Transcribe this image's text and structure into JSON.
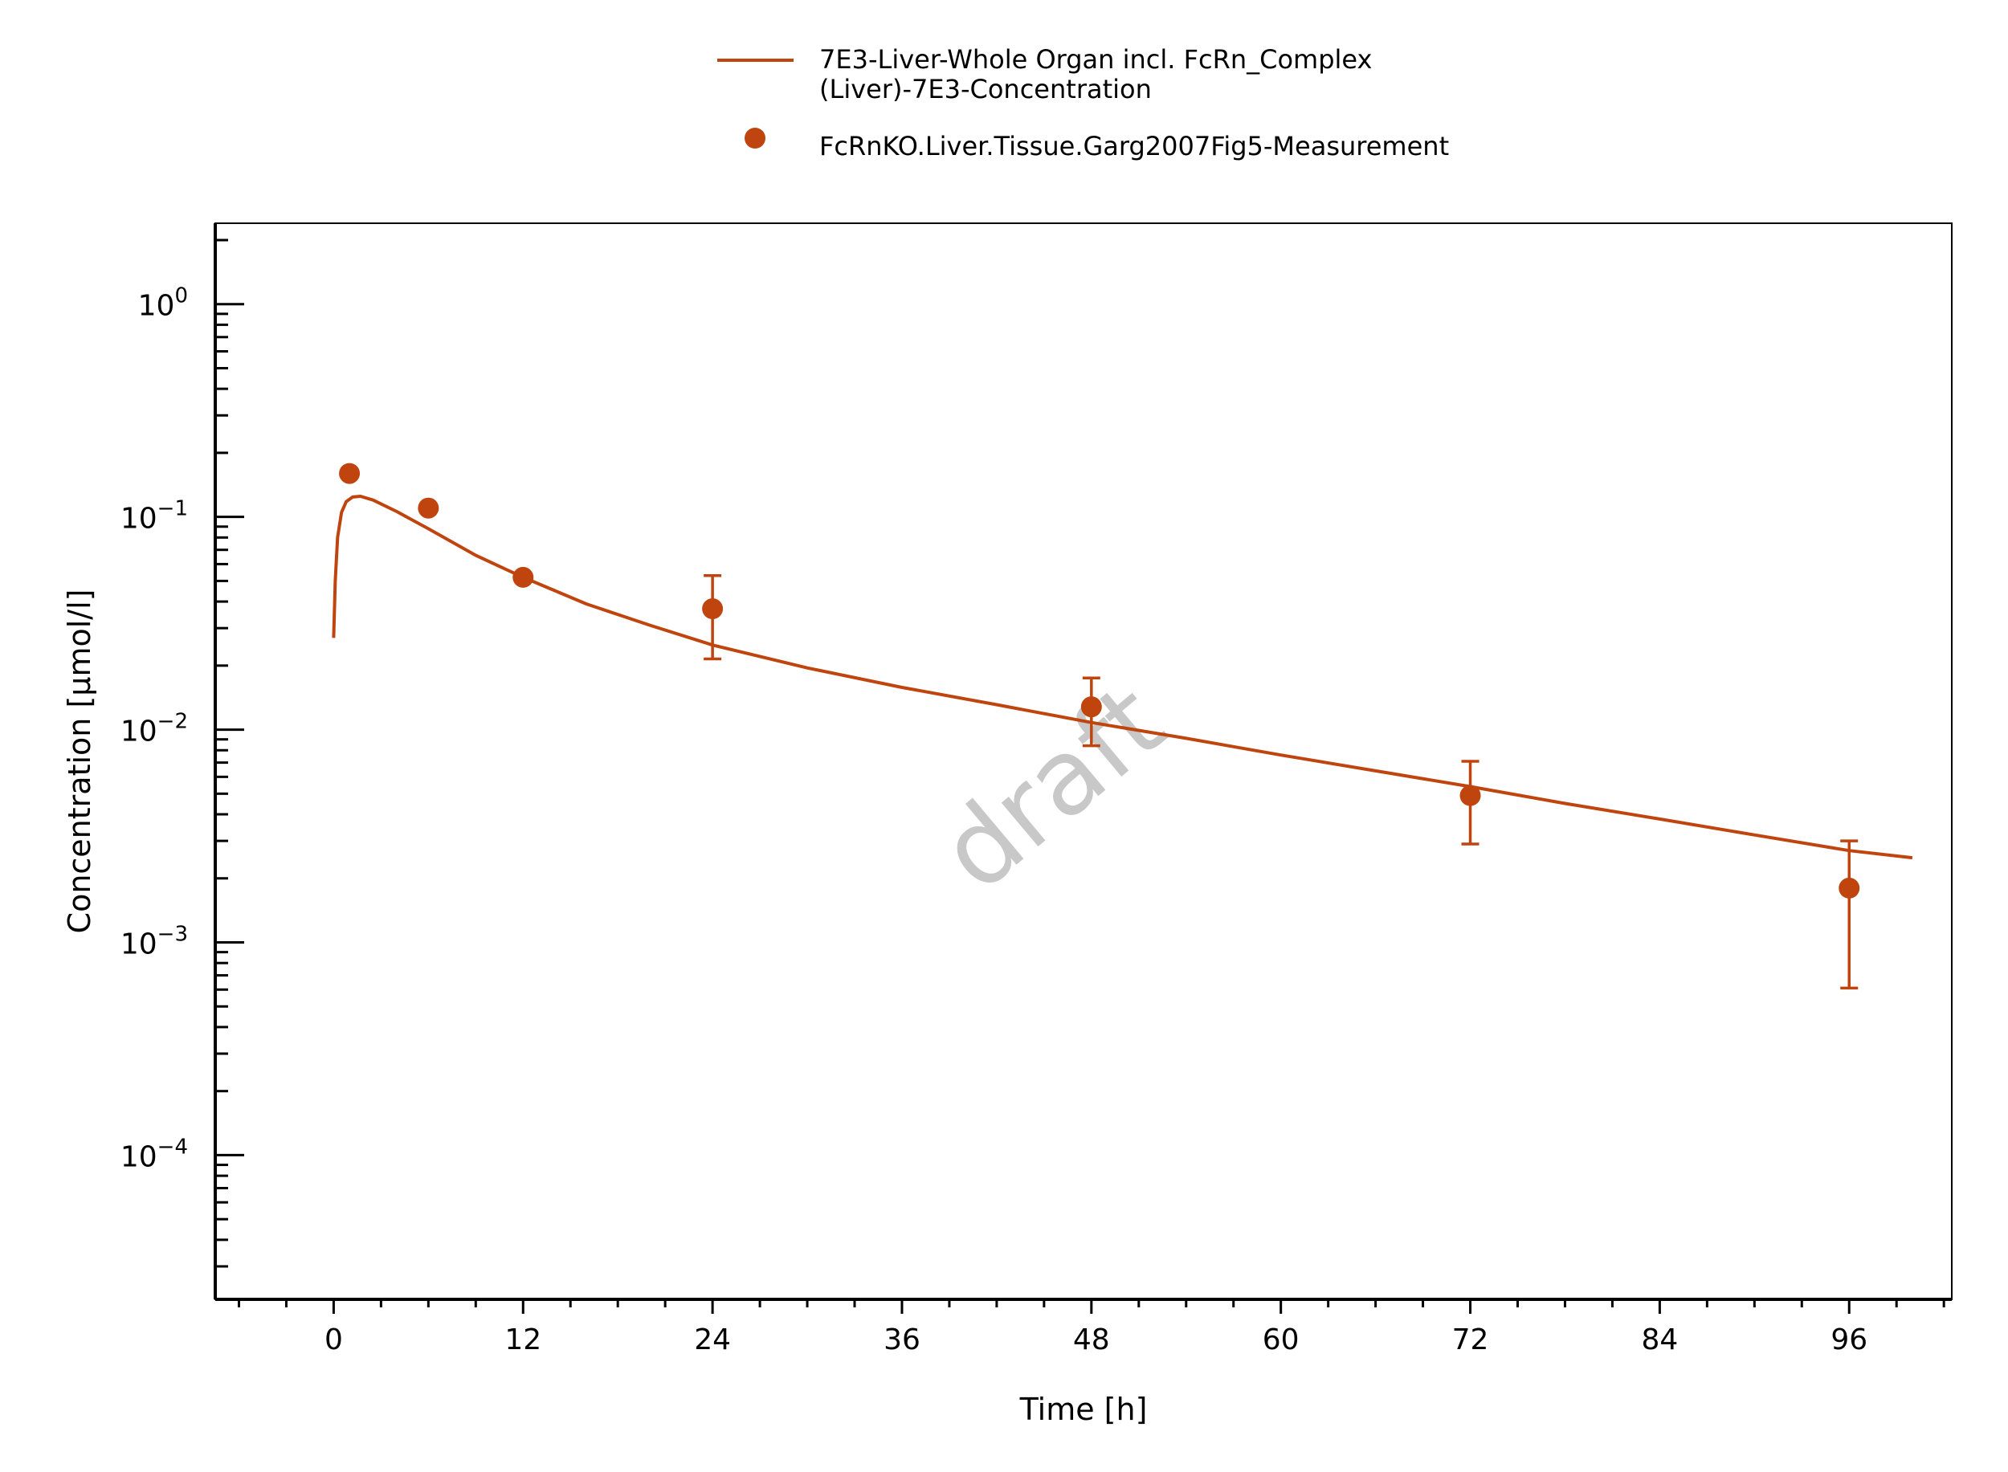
{
  "chart_data": {
    "type": "line",
    "xlabel": "Time [h]",
    "ylabel": "Concentration [µmol/l]",
    "xlim": [
      -7.5,
      102.5
    ],
    "ylim": [
      2.1e-05,
      2.4
    ],
    "yscale": "log",
    "x_ticks": [
      0,
      12,
      24,
      36,
      48,
      60,
      72,
      84,
      96
    ],
    "x_tick_labels": [
      "0",
      "12",
      "24",
      "36",
      "48",
      "60",
      "72",
      "84",
      "96"
    ],
    "y_ticks": [
      {
        "value": 1,
        "base": "10",
        "exp": "0"
      },
      {
        "value": 0.1,
        "base": "10",
        "exp": "−1"
      },
      {
        "value": 0.01,
        "base": "10",
        "exp": "−2"
      },
      {
        "value": 0.001,
        "base": "10",
        "exp": "−3"
      },
      {
        "value": 0.0001,
        "base": "10",
        "exp": "−4"
      }
    ],
    "grid": false,
    "legend_position": "top-center",
    "watermark": "draft",
    "series": [
      {
        "name": "7E3-Liver-Whole Organ incl. FcRn_Complex (Liver)-7E3-Concentration",
        "legend_lines": [
          "7E3-Liver-Whole Organ incl. FcRn_Complex",
          "(Liver)-7E3-Concentration"
        ],
        "kind": "line",
        "color": "#C0440E",
        "x": [
          0,
          0.1,
          0.25,
          0.5,
          0.8,
          1.2,
          1.7,
          2.5,
          4,
          6,
          9,
          12,
          16,
          20,
          24,
          30,
          36,
          42,
          48,
          54,
          60,
          66,
          72,
          78,
          84,
          90,
          96,
          100
        ],
        "y": [
          0.027,
          0.05,
          0.08,
          0.105,
          0.118,
          0.124,
          0.125,
          0.12,
          0.106,
          0.088,
          0.066,
          0.052,
          0.039,
          0.031,
          0.025,
          0.0195,
          0.0158,
          0.0131,
          0.0108,
          0.0091,
          0.0076,
          0.0064,
          0.0054,
          0.0045,
          0.0038,
          0.0032,
          0.0027,
          0.0025
        ]
      },
      {
        "name": "FcRnKO.Liver.Tissue.Garg2007Fig5-Measurement",
        "legend_lines": [
          "FcRnKO.Liver.Tissue.Garg2007Fig5-Measurement"
        ],
        "kind": "scatter",
        "color": "#C0440E",
        "x": [
          1,
          6,
          12,
          24,
          48,
          72,
          96
        ],
        "y": [
          0.16,
          0.11,
          0.052,
          0.037,
          0.0128,
          0.0049,
          0.0018
        ],
        "err_low": [
          null,
          null,
          null,
          0.0215,
          0.0084,
          0.0029,
          0.00061
        ],
        "err_high": [
          null,
          null,
          null,
          0.053,
          0.0175,
          0.0071,
          0.003
        ]
      }
    ]
  }
}
